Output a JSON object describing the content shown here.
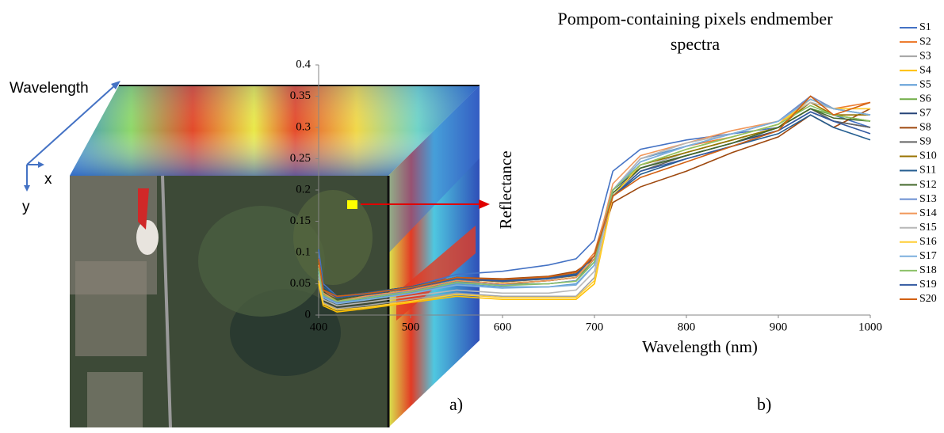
{
  "panel_a": {
    "wavelength_label": "Wavelength",
    "x_label": "x",
    "y_label": "y",
    "panel_label": "a)"
  },
  "panel_b_label": "b)",
  "chart_data": {
    "type": "line",
    "title": "Pompom-containing pixels endmember spectra",
    "x_label": "Wavelength (nm)",
    "y_label": "Reflectance",
    "x": [
      400,
      405,
      420,
      450,
      500,
      550,
      600,
      650,
      680,
      700,
      720,
      750,
      800,
      850,
      900,
      935,
      960,
      1000
    ],
    "xlim": [
      400,
      1000
    ],
    "xticks": [
      400,
      500,
      600,
      700,
      800,
      900,
      1000
    ],
    "ylim": [
      0,
      0.4
    ],
    "yticks": [
      0,
      0.05,
      0.1,
      0.15,
      0.2,
      0.25,
      0.3,
      0.35,
      0.4
    ],
    "grid": false,
    "legend": "right",
    "series": [
      {
        "name": "S1",
        "color": "#4472C4",
        "values": [
          0.105,
          0.05,
          0.03,
          0.035,
          0.045,
          0.065,
          0.07,
          0.08,
          0.09,
          0.12,
          0.23,
          0.265,
          0.28,
          0.29,
          0.3,
          0.33,
          0.32,
          0.3
        ]
      },
      {
        "name": "S2",
        "color": "#ED7D31",
        "values": [
          0.08,
          0.04,
          0.025,
          0.03,
          0.04,
          0.06,
          0.055,
          0.06,
          0.065,
          0.1,
          0.2,
          0.25,
          0.27,
          0.285,
          0.305,
          0.35,
          0.33,
          0.34
        ]
      },
      {
        "name": "S3",
        "color": "#A5A5A5",
        "values": [
          0.06,
          0.02,
          0.01,
          0.015,
          0.025,
          0.035,
          0.03,
          0.03,
          0.03,
          0.06,
          0.19,
          0.235,
          0.26,
          0.28,
          0.3,
          0.33,
          0.32,
          0.32
        ]
      },
      {
        "name": "S4",
        "color": "#FFC000",
        "values": [
          0.05,
          0.015,
          0.005,
          0.01,
          0.02,
          0.03,
          0.025,
          0.025,
          0.025,
          0.05,
          0.19,
          0.24,
          0.265,
          0.285,
          0.305,
          0.34,
          0.32,
          0.31
        ]
      },
      {
        "name": "S5",
        "color": "#5B9BD5",
        "values": [
          0.07,
          0.03,
          0.02,
          0.025,
          0.035,
          0.05,
          0.045,
          0.045,
          0.05,
          0.08,
          0.2,
          0.25,
          0.27,
          0.29,
          0.31,
          0.345,
          0.33,
          0.32
        ]
      },
      {
        "name": "S6",
        "color": "#70AD47",
        "values": [
          0.08,
          0.035,
          0.025,
          0.03,
          0.04,
          0.055,
          0.05,
          0.05,
          0.055,
          0.09,
          0.2,
          0.24,
          0.26,
          0.28,
          0.3,
          0.33,
          0.32,
          0.31
        ]
      },
      {
        "name": "S7",
        "color": "#264478",
        "values": [
          0.09,
          0.04,
          0.03,
          0.035,
          0.045,
          0.06,
          0.055,
          0.06,
          0.065,
          0.095,
          0.2,
          0.235,
          0.255,
          0.275,
          0.295,
          0.325,
          0.31,
          0.3
        ]
      },
      {
        "name": "S8",
        "color": "#9E480E",
        "values": [
          0.09,
          0.04,
          0.03,
          0.035,
          0.045,
          0.06,
          0.058,
          0.062,
          0.07,
          0.09,
          0.18,
          0.205,
          0.23,
          0.26,
          0.285,
          0.32,
          0.3,
          0.33
        ]
      },
      {
        "name": "S9",
        "color": "#636363",
        "values": [
          0.085,
          0.035,
          0.025,
          0.03,
          0.04,
          0.055,
          0.05,
          0.055,
          0.06,
          0.09,
          0.19,
          0.23,
          0.255,
          0.275,
          0.3,
          0.33,
          0.31,
          0.3
        ]
      },
      {
        "name": "S10",
        "color": "#997300",
        "values": [
          0.085,
          0.04,
          0.03,
          0.033,
          0.043,
          0.058,
          0.053,
          0.058,
          0.063,
          0.095,
          0.2,
          0.24,
          0.26,
          0.28,
          0.3,
          0.34,
          0.32,
          0.32
        ]
      },
      {
        "name": "S11",
        "color": "#255E91",
        "values": [
          0.09,
          0.045,
          0.03,
          0.035,
          0.045,
          0.06,
          0.056,
          0.06,
          0.066,
          0.095,
          0.19,
          0.225,
          0.25,
          0.27,
          0.29,
          0.32,
          0.3,
          0.28
        ]
      },
      {
        "name": "S12",
        "color": "#43682B",
        "values": [
          0.08,
          0.035,
          0.025,
          0.03,
          0.04,
          0.055,
          0.05,
          0.055,
          0.06,
          0.09,
          0.195,
          0.235,
          0.255,
          0.275,
          0.3,
          0.33,
          0.315,
          0.31
        ]
      },
      {
        "name": "S13",
        "color": "#698ED0",
        "values": [
          0.075,
          0.03,
          0.02,
          0.028,
          0.038,
          0.052,
          0.048,
          0.05,
          0.055,
          0.085,
          0.2,
          0.245,
          0.27,
          0.29,
          0.31,
          0.35,
          0.33,
          0.32
        ]
      },
      {
        "name": "S14",
        "color": "#F1975A",
        "values": [
          0.08,
          0.035,
          0.022,
          0.03,
          0.04,
          0.055,
          0.05,
          0.055,
          0.06,
          0.09,
          0.21,
          0.255,
          0.275,
          0.295,
          0.31,
          0.34,
          0.33,
          0.33
        ]
      },
      {
        "name": "S15",
        "color": "#B7B7B7",
        "values": [
          0.065,
          0.025,
          0.015,
          0.02,
          0.03,
          0.04,
          0.035,
          0.035,
          0.04,
          0.07,
          0.2,
          0.25,
          0.275,
          0.29,
          0.31,
          0.34,
          0.33,
          0.32
        ]
      },
      {
        "name": "S16",
        "color": "#FFCD33",
        "values": [
          0.055,
          0.018,
          0.008,
          0.012,
          0.022,
          0.033,
          0.028,
          0.028,
          0.028,
          0.055,
          0.19,
          0.24,
          0.265,
          0.285,
          0.305,
          0.345,
          0.33,
          0.33
        ]
      },
      {
        "name": "S17",
        "color": "#7CAFDD",
        "values": [
          0.07,
          0.028,
          0.018,
          0.024,
          0.034,
          0.048,
          0.043,
          0.045,
          0.048,
          0.08,
          0.2,
          0.245,
          0.27,
          0.29,
          0.31,
          0.345,
          0.33,
          0.32
        ]
      },
      {
        "name": "S18",
        "color": "#8CC168",
        "values": [
          0.075,
          0.032,
          0.022,
          0.027,
          0.037,
          0.052,
          0.047,
          0.05,
          0.054,
          0.085,
          0.2,
          0.24,
          0.265,
          0.285,
          0.305,
          0.335,
          0.32,
          0.31
        ]
      },
      {
        "name": "S19",
        "color": "#335AA1",
        "values": [
          0.09,
          0.04,
          0.028,
          0.033,
          0.043,
          0.058,
          0.054,
          0.058,
          0.064,
          0.095,
          0.19,
          0.23,
          0.25,
          0.27,
          0.295,
          0.325,
          0.31,
          0.29
        ]
      },
      {
        "name": "S20",
        "color": "#D26012",
        "values": [
          0.09,
          0.04,
          0.03,
          0.034,
          0.044,
          0.06,
          0.057,
          0.061,
          0.068,
          0.095,
          0.19,
          0.22,
          0.245,
          0.27,
          0.295,
          0.35,
          0.32,
          0.34
        ]
      }
    ]
  }
}
